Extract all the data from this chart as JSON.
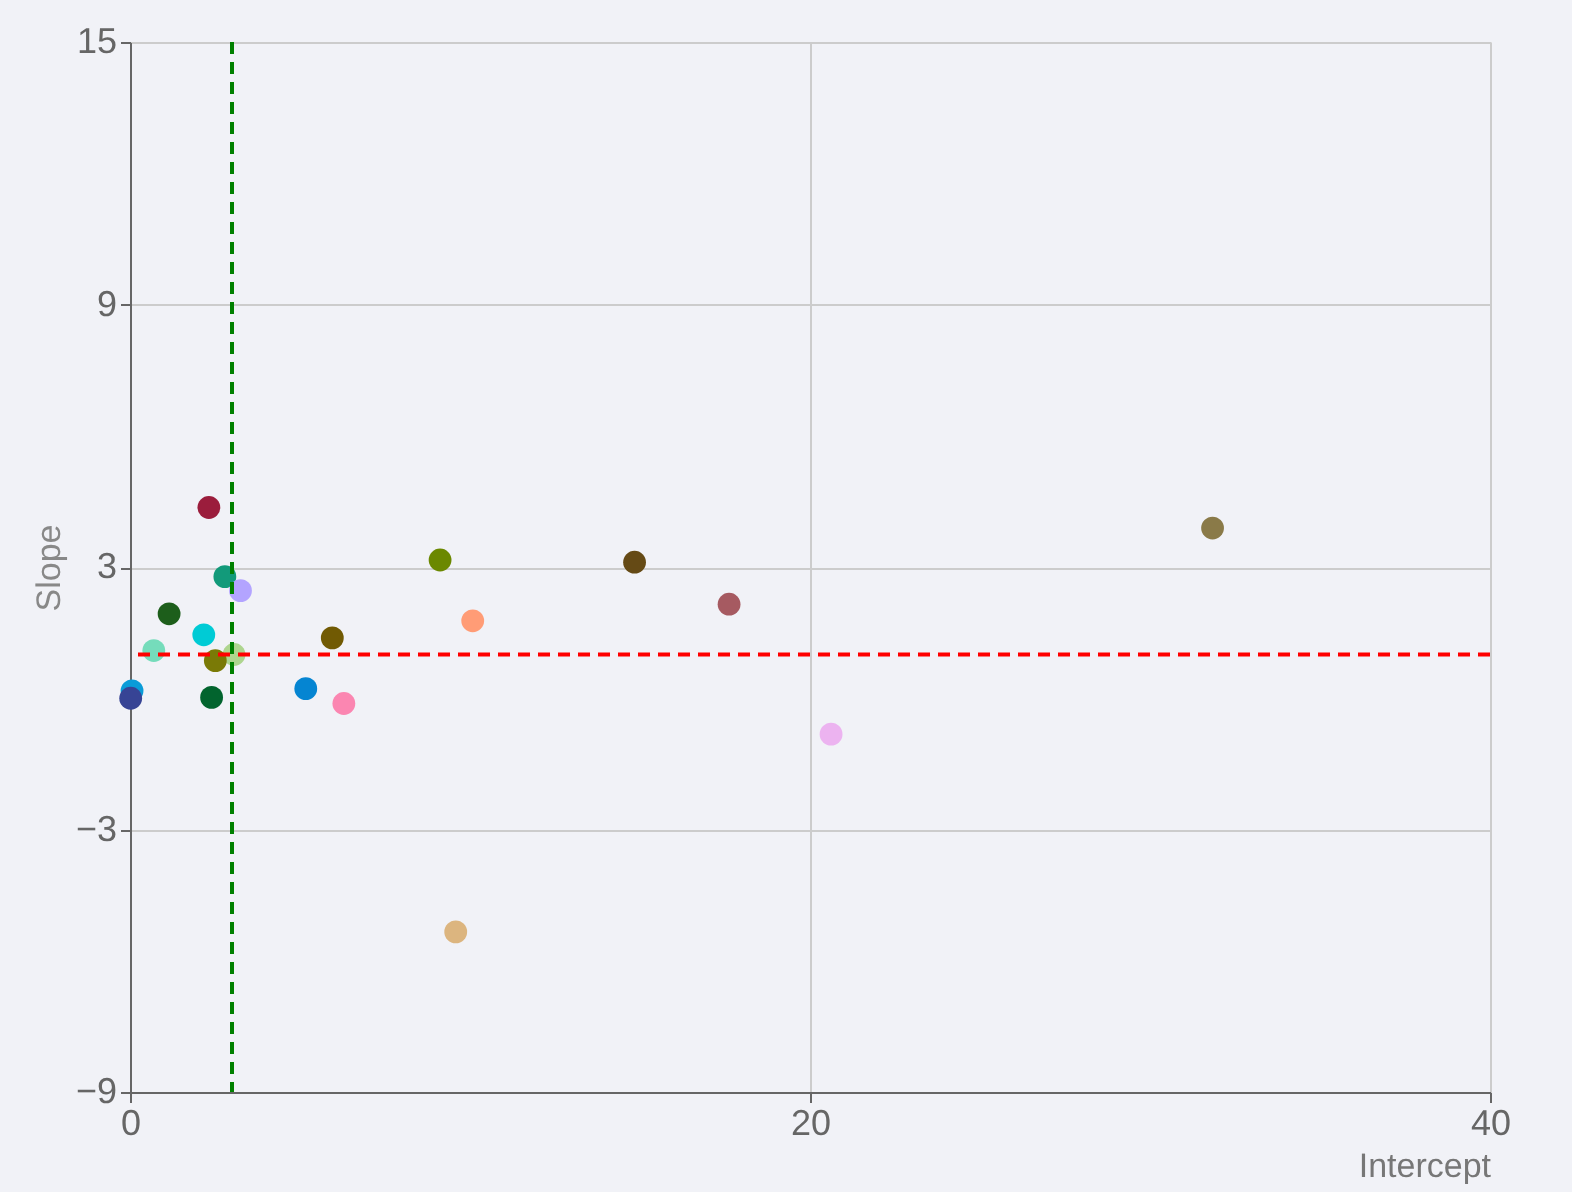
{
  "chart_data": {
    "type": "scatter",
    "xlabel": "Intercept",
    "ylabel": "Slope",
    "x": [
      2.32,
      2.79,
      3.25,
      1.15,
      2.17,
      0.7,
      3.06,
      2.51,
      5.95,
      5.17,
      6.29,
      2.4,
      0.06,
      0.02,
      9.12,
      10.08,
      14.84,
      17.62,
      20.62,
      9.58,
      31.84
    ],
    "values": [
      4.36,
      2.78,
      2.46,
      1.93,
      1.45,
      1.09,
      1.0,
      0.86,
      1.38,
      0.22,
      -0.12,
      0.02,
      0.17,
      0.0,
      3.16,
      1.77,
      3.11,
      2.15,
      -0.82,
      -5.34,
      3.89
    ],
    "colors": [
      "#9b1d3c",
      "#129a7a",
      "#b3a4ff",
      "#1d5e1b",
      "#00cbd5",
      "#75dcbb",
      "#aed58f",
      "#7a7a06",
      "#715a03",
      "#0585d2",
      "#fb86b1",
      "#02642e",
      "#0a9cd8",
      "#374495",
      "#6b8800",
      "#ff9c76",
      "#654a15",
      "#a65a61",
      "#ecb3f0",
      "#dcb57f",
      "#8a7a48"
    ],
    "xlim": [
      0,
      40
    ],
    "xticks": [
      0,
      20,
      40
    ],
    "ylim": [
      -9,
      15
    ],
    "yticks": [
      -9,
      -3,
      3,
      9,
      15
    ],
    "grid": true,
    "marker": "circle",
    "ref_lines": [
      {
        "axis": "x",
        "value": 3,
        "color": "#008000",
        "line_style": "dashed"
      },
      {
        "axis": "y",
        "value": 1.0,
        "color": "#ff0000",
        "line_style": "dashed"
      }
    ]
  }
}
